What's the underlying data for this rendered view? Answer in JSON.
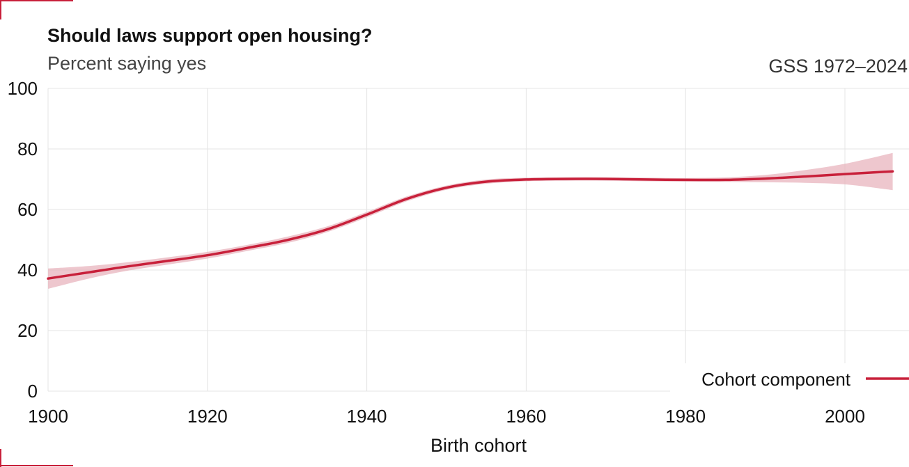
{
  "chart_data": {
    "type": "line",
    "title": "Should laws support open housing?",
    "subtitle": "Percent saying yes",
    "source": "GSS 1972–2024",
    "xlabel": "Birth cohort",
    "ylabel": "",
    "xlim": [
      1900,
      2006
    ],
    "ylim": [
      0,
      100
    ],
    "x_ticks": [
      1900,
      1920,
      1940,
      1960,
      1980,
      2000
    ],
    "y_ticks": [
      0,
      20,
      40,
      60,
      80,
      100
    ],
    "grid": true,
    "legend_position": "bottom-right",
    "series": [
      {
        "name": "Cohort component",
        "color": "#c8203a",
        "band_color": "#e8b4bd",
        "x": [
          1900,
          1905,
          1910,
          1915,
          1920,
          1925,
          1930,
          1935,
          1940,
          1945,
          1950,
          1955,
          1960,
          1965,
          1970,
          1975,
          1980,
          1985,
          1990,
          1995,
          2000,
          2006
        ],
        "y": [
          37.2,
          39.2,
          41.2,
          43.0,
          44.9,
          47.3,
          49.9,
          53.4,
          58.3,
          63.5,
          67.2,
          69.2,
          69.9,
          70.1,
          70.1,
          69.9,
          69.8,
          69.8,
          70.2,
          70.9,
          71.7,
          72.6
        ],
        "lower": [
          33.8,
          37.1,
          39.8,
          41.8,
          43.8,
          46.3,
          48.9,
          52.5,
          57.4,
          62.7,
          66.5,
          68.5,
          69.3,
          69.5,
          69.5,
          69.3,
          69.2,
          69.1,
          69.0,
          68.8,
          68.3,
          66.4
        ],
        "upper": [
          40.5,
          41.3,
          42.6,
          44.2,
          46.0,
          48.3,
          51.0,
          54.4,
          59.2,
          64.3,
          67.9,
          69.9,
          70.5,
          70.7,
          70.7,
          70.5,
          70.4,
          70.6,
          71.4,
          73.0,
          75.1,
          78.7
        ]
      }
    ]
  }
}
